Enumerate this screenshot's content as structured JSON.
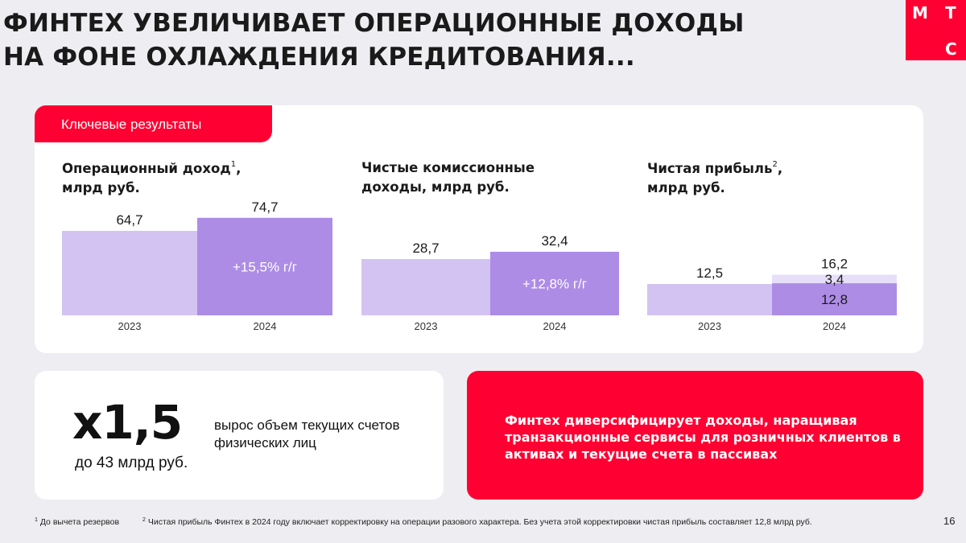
{
  "title_lines": [
    "ФИНТЕХ УВЕЛИЧИВАЕТ ОПЕРАЦИОННЫЕ ДОХОДЫ",
    "НА ФОНЕ ОХЛАЖДЕНИЯ КРЕДИТОВАНИЯ..."
  ],
  "logo": {
    "letters": [
      "М",
      "Т",
      "С"
    ],
    "color": "#ff0032"
  },
  "tab_label": "Ключевые результаты",
  "colors": {
    "accent": "#ff0032",
    "bar_light": "#d3c3f2",
    "bar_dark": "#ad8ce6",
    "bar_pale": "#e7dff9"
  },
  "chart_data": [
    {
      "type": "bar",
      "title_main": "Операционный доход",
      "title_sup": "1",
      "title_tail": ",",
      "title_line2": "млрд руб.",
      "categories": [
        "2023",
        "2024"
      ],
      "values": [
        64.7,
        74.7
      ],
      "value_labels": [
        "64,7",
        "74,7"
      ],
      "annotation": "+15,5% г/г"
    },
    {
      "type": "bar",
      "title_main": "Чистые комиссионные",
      "title_sup": "",
      "title_tail": "",
      "title_line2": "доходы, млрд руб.",
      "categories": [
        "2023",
        "2024"
      ],
      "values": [
        28.7,
        32.4
      ],
      "value_labels": [
        "28,7",
        "32,4"
      ],
      "annotation": "+12,8% г/г"
    },
    {
      "type": "bar",
      "title_main": "Чистая прибыль",
      "title_sup": "2",
      "title_tail": ",",
      "title_line2": "млрд руб.",
      "categories": [
        "2023",
        "2024"
      ],
      "values": [
        12.5,
        16.2
      ],
      "value_labels": [
        "12,5",
        "16,2"
      ],
      "stack_2024": {
        "base": 12.8,
        "base_label": "12,8",
        "top": 3.4,
        "top_label": "3,4"
      }
    }
  ],
  "stat": {
    "big": "х1,5",
    "sub": "до 43 млрд руб.",
    "desc": "вырос объем текущих счетов физических лиц"
  },
  "highlight": "Финтех диверсифицирует доходы, наращивая транзакционные сервисы для розничных клиентов в активах и текущие счета в пассивах",
  "footnotes": {
    "f1_num": "1",
    "f1": "До вычета резервов",
    "f2_num": "2",
    "f2": "Чистая прибыль Финтех в 2024 году включает корректировку на операции разового характера. Без учета этой корректировки чистая прибыль составляет 12,8 млрд руб."
  },
  "page_number": "16"
}
